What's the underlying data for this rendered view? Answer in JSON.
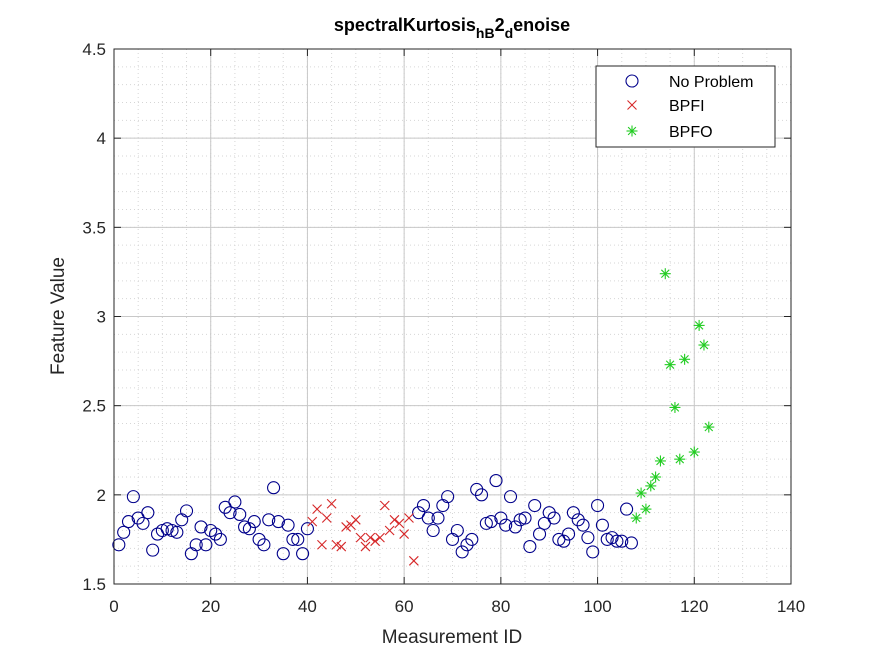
{
  "chart_data": {
    "type": "scatter",
    "title": {
      "base": "spectralKurtosis",
      "sub1": "hB",
      "mid": "2",
      "sub2": "d",
      "tail": "enoise"
    },
    "xlabel": "Measurement ID",
    "ylabel": "Feature Value",
    "xlim": [
      0,
      140
    ],
    "ylim": [
      1.5,
      4.5
    ],
    "xticks": [
      0,
      20,
      40,
      60,
      80,
      100,
      120,
      140
    ],
    "yticks": [
      1.5,
      2,
      2.5,
      3,
      3.5,
      4,
      4.5
    ],
    "xtick_labels": [
      "0",
      "20",
      "40",
      "60",
      "80",
      "100",
      "120",
      "140"
    ],
    "ytick_labels": [
      "1.5",
      "2",
      "2.5",
      "3",
      "3.5",
      "4",
      "4.5"
    ],
    "grid": true,
    "minor_grid": true,
    "legend_position": "top-right",
    "series": [
      {
        "name": "No Problem",
        "marker": "circle",
        "color": "#00008b",
        "x": [
          1,
          2,
          3,
          4,
          5,
          6,
          7,
          8,
          9,
          10,
          11,
          12,
          13,
          14,
          15,
          16,
          17,
          18,
          19,
          20,
          21,
          22,
          23,
          24,
          25,
          26,
          27,
          28,
          29,
          30,
          31,
          32,
          33,
          34,
          35,
          36,
          37,
          38,
          39,
          40,
          63,
          64,
          65,
          66,
          67,
          68,
          69,
          70,
          71,
          72,
          73,
          74,
          75,
          76,
          77,
          78,
          79,
          80,
          81,
          82,
          83,
          84,
          85,
          86,
          87,
          88,
          89,
          90,
          91,
          92,
          93,
          94,
          95,
          96,
          97,
          98,
          99,
          100,
          101,
          102,
          103,
          104,
          105,
          106,
          107
        ],
        "y": [
          1.72,
          1.79,
          1.85,
          1.99,
          1.87,
          1.84,
          1.9,
          1.69,
          1.78,
          1.8,
          1.81,
          1.8,
          1.79,
          1.86,
          1.91,
          1.67,
          1.72,
          1.82,
          1.72,
          1.8,
          1.78,
          1.75,
          1.93,
          1.9,
          1.96,
          1.89,
          1.82,
          1.81,
          1.85,
          1.75,
          1.72,
          1.86,
          2.04,
          1.85,
          1.67,
          1.83,
          1.75,
          1.75,
          1.67,
          1.81,
          1.9,
          1.94,
          1.87,
          1.8,
          1.87,
          1.94,
          1.99,
          1.75,
          1.8,
          1.68,
          1.72,
          1.75,
          2.03,
          2.0,
          1.84,
          1.85,
          2.08,
          1.87,
          1.83,
          1.99,
          1.82,
          1.86,
          1.87,
          1.71,
          1.94,
          1.78,
          1.84,
          1.9,
          1.87,
          1.75,
          1.74,
          1.78,
          1.9,
          1.86,
          1.83,
          1.76,
          1.68,
          1.94,
          1.83,
          1.75,
          1.76,
          1.74,
          1.74,
          1.92,
          1.73
        ]
      },
      {
        "name": "BPFI",
        "marker": "x",
        "color": "#d62728",
        "x": [
          41,
          42,
          43,
          44,
          45,
          46,
          47,
          48,
          49,
          50,
          51,
          52,
          53,
          54,
          55,
          56,
          57,
          58,
          59,
          60,
          61,
          62
        ],
        "y": [
          1.85,
          1.92,
          1.72,
          1.87,
          1.95,
          1.72,
          1.71,
          1.82,
          1.83,
          1.86,
          1.76,
          1.71,
          1.76,
          1.74,
          1.76,
          1.94,
          1.8,
          1.86,
          1.84,
          1.78,
          1.87,
          1.63
        ]
      },
      {
        "name": "BPFO",
        "marker": "asterisk",
        "color": "#22cc22",
        "x": [
          108,
          109,
          110,
          111,
          112,
          113,
          114,
          115,
          116,
          117,
          118,
          120,
          121,
          122,
          123
        ],
        "y": [
          1.87,
          2.01,
          1.92,
          2.05,
          2.1,
          2.19,
          3.24,
          2.73,
          2.49,
          2.2,
          2.76,
          2.24,
          2.95,
          2.84,
          2.38
        ]
      }
    ]
  }
}
